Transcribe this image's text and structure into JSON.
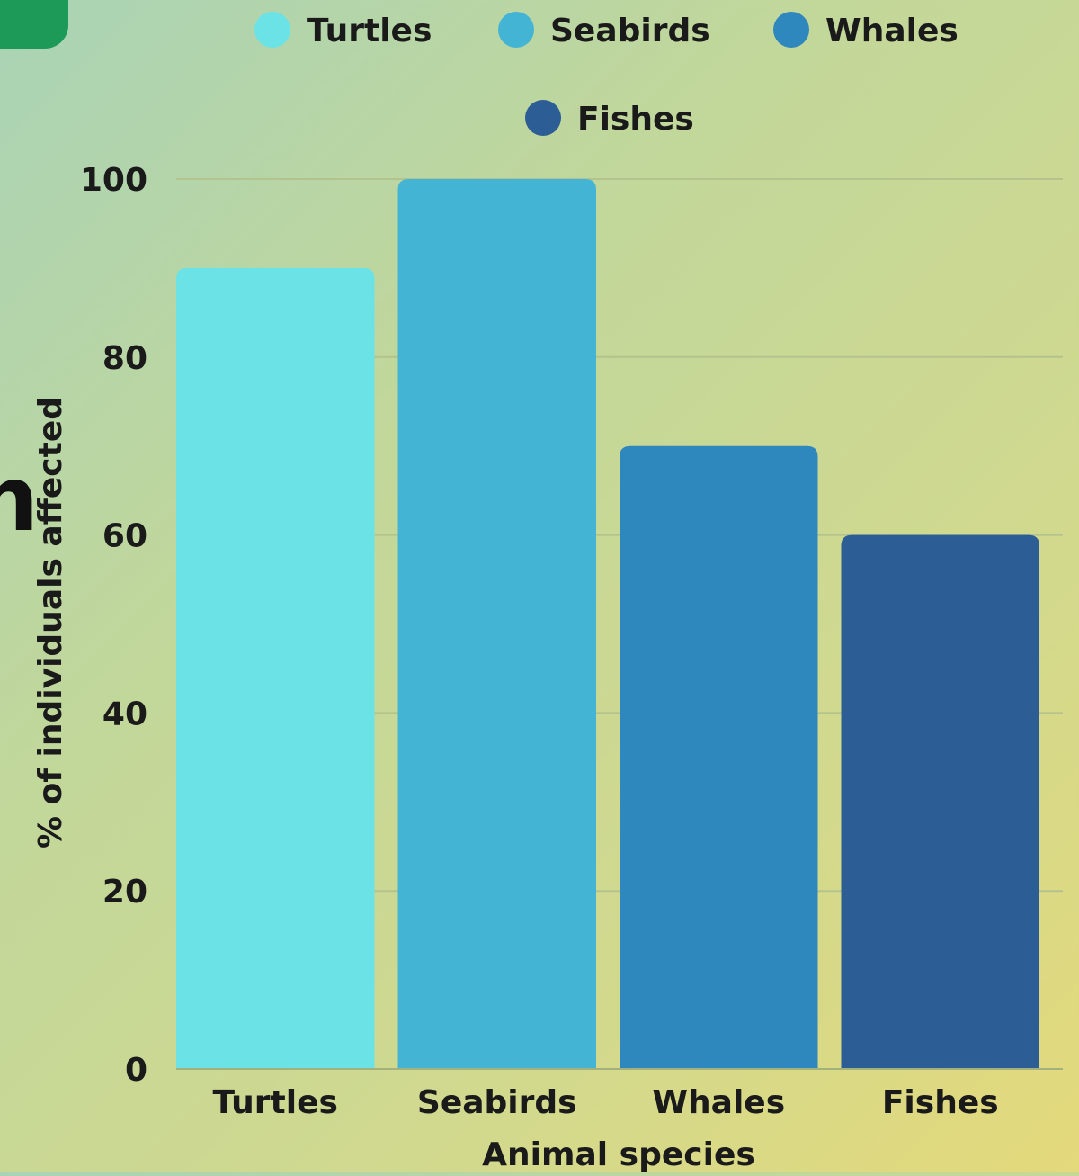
{
  "edge_glyph": "n",
  "chart_data": {
    "type": "bar",
    "title": "",
    "xlabel": "Animal species",
    "ylabel": "% of individuals affected",
    "categories": [
      "Turtles",
      "Seabirds",
      "Whales",
      "Fishes"
    ],
    "values": [
      90,
      100,
      70,
      60
    ],
    "colors": [
      "#6ae2e6",
      "#43b4d4",
      "#2e87bd",
      "#2d5d95"
    ],
    "ylim": [
      0,
      100
    ],
    "yticks": [
      0,
      20,
      40,
      60,
      80,
      100
    ],
    "grid": true,
    "legend": {
      "placement": "top",
      "entries": [
        "Turtles",
        "Seabirds",
        "Whales",
        "Fishes"
      ]
    }
  }
}
